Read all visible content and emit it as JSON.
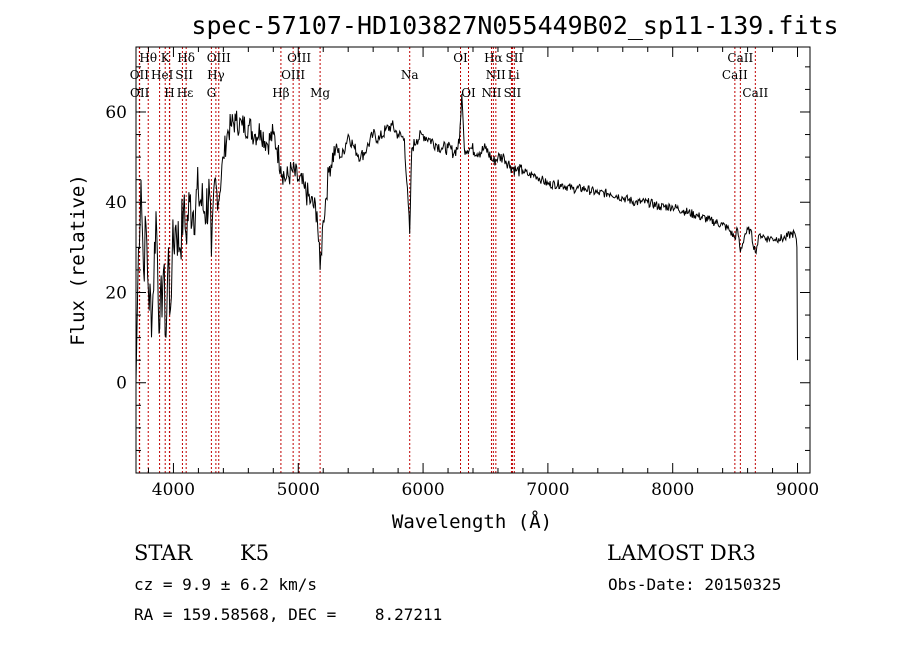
{
  "chart_data": {
    "type": "line",
    "title": "spec-57107-HD103827N055449B02_sp11-139.fits",
    "xlabel": "Wavelength (Å)",
    "ylabel": "Flux (relative)",
    "xlim": [
      3700,
      9100
    ],
    "ylim": [
      -20,
      74.4
    ],
    "xticks": [
      4000,
      5000,
      6000,
      7000,
      8000,
      9000
    ],
    "yticks": [
      0,
      20,
      40,
      60
    ],
    "grid": false,
    "series": [
      {
        "name": "spectrum",
        "x": [
          3700,
          3720,
          3740,
          3760,
          3780,
          3800,
          3830,
          3860,
          3890,
          3920,
          3940,
          3960,
          3970,
          3990,
          4020,
          4050,
          4080,
          4100,
          4130,
          4160,
          4200,
          4250,
          4290,
          4304,
          4330,
          4360,
          4400,
          4430,
          4460,
          4500,
          4550,
          4600,
          4650,
          4700,
          4750,
          4800,
          4830,
          4860,
          4900,
          4950,
          5000,
          5050,
          5100,
          5150,
          5175,
          5200,
          5250,
          5300,
          5350,
          5400,
          5450,
          5500,
          5550,
          5600,
          5650,
          5700,
          5750,
          5800,
          5850,
          5893,
          5910,
          5950,
          6000,
          6050,
          6100,
          6150,
          6200,
          6250,
          6290,
          6310,
          6330,
          6380,
          6450,
          6500,
          6563,
          6600,
          6650,
          6700,
          6750,
          6800,
          6850,
          6900,
          6950,
          7000,
          7100,
          7200,
          7300,
          7400,
          7500,
          7600,
          7700,
          7800,
          7900,
          8000,
          8100,
          8200,
          8300,
          8400,
          8450,
          8498,
          8520,
          8542,
          8580,
          8620,
          8662,
          8700,
          8750,
          8800,
          8850,
          8900,
          8950,
          8980,
          8995,
          9000
        ],
        "y": [
          0,
          30,
          45,
          25,
          35,
          20,
          15,
          38,
          12,
          25,
          10,
          30,
          15,
          28,
          35,
          30,
          38,
          33,
          40,
          38,
          42,
          38,
          42,
          28,
          45,
          40,
          50,
          55,
          57,
          58,
          57,
          57,
          55,
          56,
          53,
          55,
          52,
          48,
          45,
          47,
          45,
          43,
          40,
          38,
          25,
          36,
          48,
          52,
          50,
          55,
          52,
          50,
          52,
          55,
          54,
          56,
          57,
          55,
          54,
          33,
          52,
          54,
          55,
          54,
          53,
          52,
          52,
          51,
          53,
          64,
          52,
          52,
          51,
          52,
          49,
          50,
          50,
          48,
          47,
          47,
          46,
          46,
          45,
          44,
          44,
          43,
          43,
          42,
          42,
          41,
          40,
          40,
          39,
          39,
          38,
          37,
          36,
          35,
          34,
          32,
          34,
          29,
          33,
          34,
          29,
          33,
          32,
          32,
          32,
          32,
          33,
          33,
          30,
          5
        ]
      }
    ],
    "line_markers": [
      {
        "label": "Hθ",
        "wavelength": 3798,
        "row": 0
      },
      {
        "label": "K",
        "wavelength": 3934,
        "row": 0
      },
      {
        "label": "Hδ",
        "wavelength": 4102,
        "row": 0
      },
      {
        "label": "OIII",
        "wavelength": 4363,
        "row": 0
      },
      {
        "label": "OIII",
        "wavelength": 5007,
        "row": 0
      },
      {
        "label": "OI",
        "wavelength": 6300,
        "row": 0
      },
      {
        "label": "Hα",
        "wavelength": 6563,
        "row": 0
      },
      {
        "label": "SII",
        "wavelength": 6731,
        "row": 0
      },
      {
        "label": "CaII",
        "wavelength": 8542,
        "row": 0
      },
      {
        "label": "OII",
        "wavelength": 3727,
        "row": 1
      },
      {
        "label": "HeI",
        "wavelength": 3889,
        "row": 1
      },
      {
        "label": "SII",
        "wavelength": 4072,
        "row": 1
      },
      {
        "label": "Hγ",
        "wavelength": 4340,
        "row": 1
      },
      {
        "label": "OIII",
        "wavelength": 4959,
        "row": 1
      },
      {
        "label": "Na",
        "wavelength": 5893,
        "row": 1
      },
      {
        "label": "NII",
        "wavelength": 6583,
        "row": 1
      },
      {
        "label": "Li",
        "wavelength": 6708,
        "row": 1
      },
      {
        "label": "CaII",
        "wavelength": 8498,
        "row": 1
      },
      {
        "label": "OII",
        "wavelength": 3729,
        "row": 2
      },
      {
        "label": "Hε",
        "wavelength": 3970,
        "row": 2
      },
      {
        "label": "H",
        "wavelength": 3968,
        "row": 2
      },
      {
        "label": "G",
        "wavelength": 4304,
        "row": 2
      },
      {
        "label": "Hβ",
        "wavelength": 4861,
        "row": 2
      },
      {
        "label": "Mg",
        "wavelength": 5175,
        "row": 2
      },
      {
        "label": "OI",
        "wavelength": 6364,
        "row": 2
      },
      {
        "label": "NII",
        "wavelength": 6548,
        "row": 2
      },
      {
        "label": "SII",
        "wavelength": 6716,
        "row": 2
      },
      {
        "label": "CaII",
        "wavelength": 8662,
        "row": 2
      }
    ],
    "colors": {
      "spectrum": "#000000",
      "marker": "#c00000"
    }
  },
  "info": {
    "class": "STAR",
    "subclass": "K5",
    "survey": "LAMOST DR3",
    "cz": "cz = 9.9 ± 6.2 km/s",
    "obs_date": "Obs-Date: 20150325",
    "coords": "RA = 159.58568, DEC =    8.27211"
  }
}
